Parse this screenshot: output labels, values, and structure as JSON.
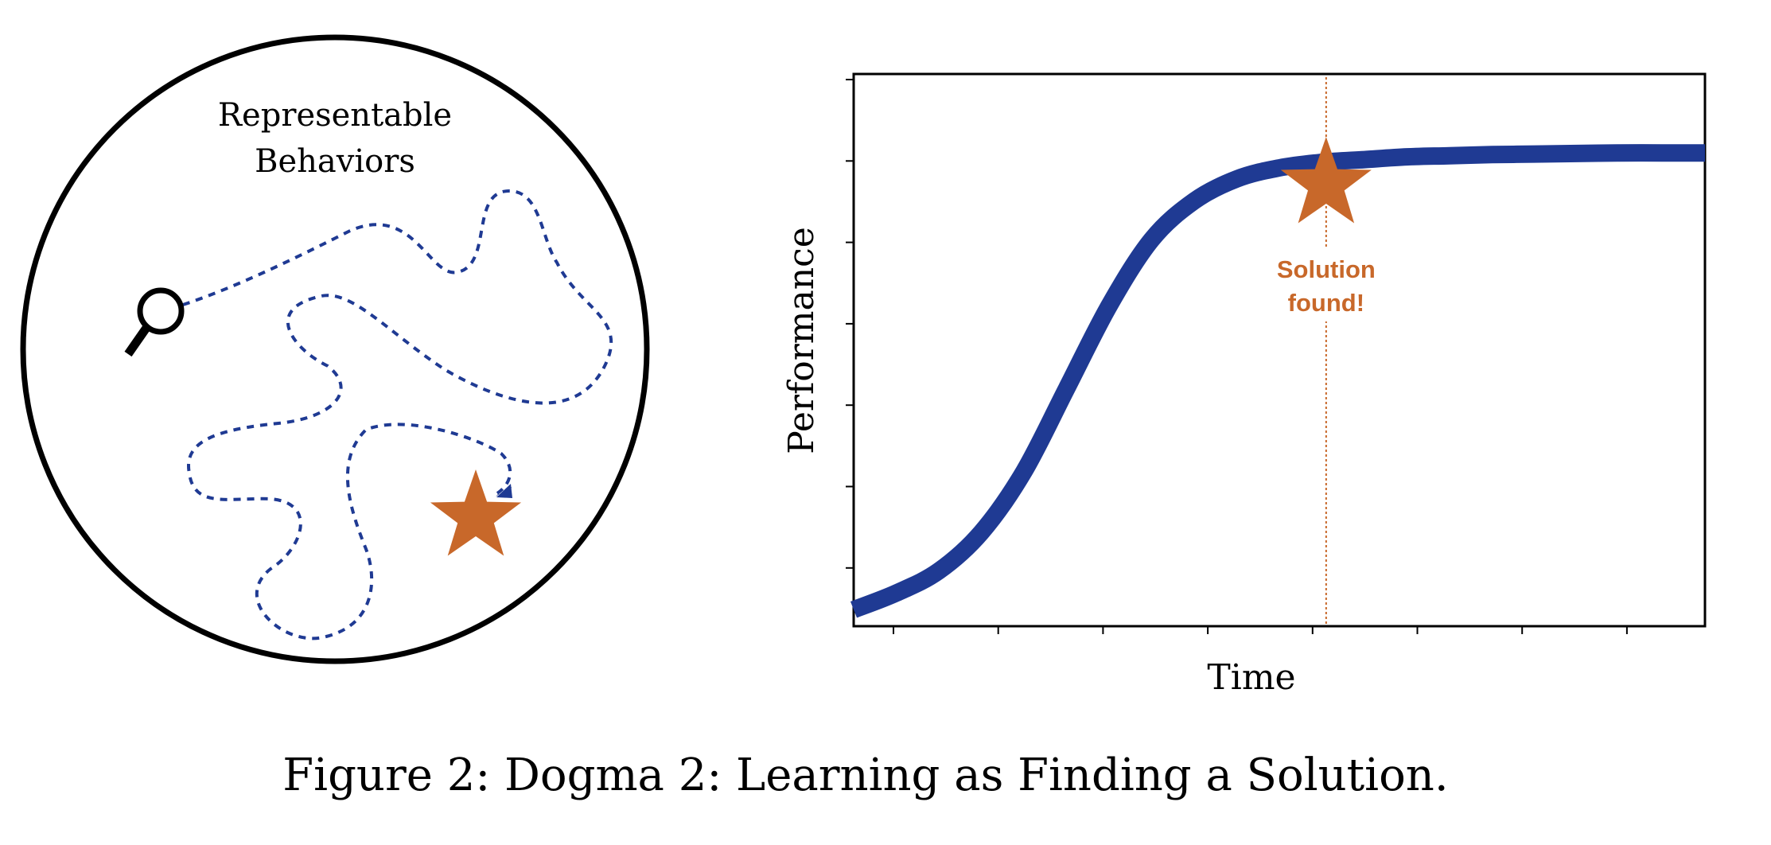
{
  "left_panel": {
    "label_line1": "Representable",
    "label_line2": "Behaviors",
    "icon": "magnifying-glass-icon",
    "marker_icon": "star-icon",
    "colors": {
      "circle": "#000000",
      "path": "#1f3a93",
      "star": "#c8682a"
    }
  },
  "chart_data": {
    "type": "line",
    "xlabel": "Time",
    "ylabel": "Performance",
    "x_tick_count": 8,
    "y_tick_count": 7,
    "tick_labels": "none",
    "grid": false,
    "legend": "none",
    "series": [
      {
        "shape": "sigmoid",
        "color": "#1f3a93",
        "x": [
          0,
          0.05,
          0.1,
          0.15,
          0.2,
          0.25,
          0.3,
          0.35,
          0.4,
          0.45,
          0.5,
          0.55,
          0.6,
          0.65,
          0.7,
          0.75,
          0.8,
          0.85,
          0.9,
          0.95,
          1.0
        ],
        "y": [
          0.03,
          0.06,
          0.1,
          0.17,
          0.28,
          0.43,
          0.58,
          0.7,
          0.77,
          0.81,
          0.83,
          0.84,
          0.845,
          0.85,
          0.852,
          0.854,
          0.855,
          0.856,
          0.857,
          0.857,
          0.857
        ]
      }
    ],
    "annotation": {
      "line1": "Solution",
      "line2": "found!",
      "x": 0.555,
      "marker": "star-icon",
      "color": "#c8682a",
      "line_style": "dotted"
    }
  },
  "caption": "Figure 2: Dogma 2: Learning as Finding a Solution."
}
